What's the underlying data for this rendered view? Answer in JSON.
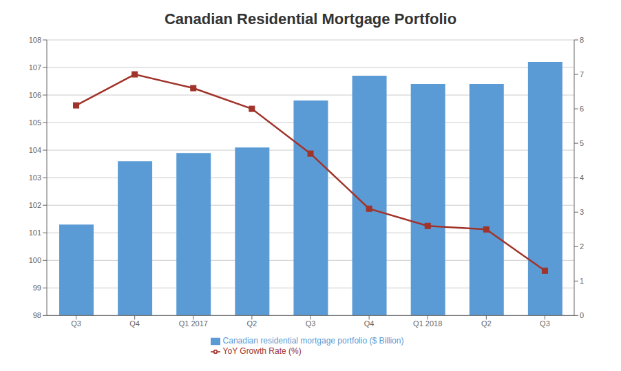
{
  "chart_data": {
    "type": "bar",
    "title": "Canadian Residential Mortgage Portfolio",
    "categories": [
      "Q3",
      "Q4",
      "Q1 2017",
      "Q2",
      "Q3",
      "Q4",
      "Q1 2018",
      "Q2",
      "Q3"
    ],
    "series": [
      {
        "name": "Canadian residential mortgage portfolio ($ Billion)",
        "type": "bar",
        "color": "#5B9BD5",
        "values": [
          101.3,
          103.6,
          103.9,
          104.1,
          105.8,
          106.7,
          106.4,
          106.4,
          107.2
        ]
      },
      {
        "name": "YoY Growth Rate (%)",
        "type": "line",
        "color": "#A0342A",
        "marker": "square",
        "axis": "y2",
        "values": [
          6.1,
          7.0,
          6.6,
          6.0,
          4.7,
          3.1,
          2.6,
          2.5,
          1.3
        ]
      }
    ],
    "ylim": [
      98,
      108
    ],
    "yticks": [
      98,
      99,
      100,
      101,
      102,
      103,
      104,
      105,
      106,
      107,
      108
    ],
    "y2lim": [
      0,
      8
    ],
    "y2ticks": [
      0,
      1,
      2,
      3,
      4,
      5,
      6,
      7,
      8
    ],
    "grid": true,
    "legend": "bottom"
  }
}
